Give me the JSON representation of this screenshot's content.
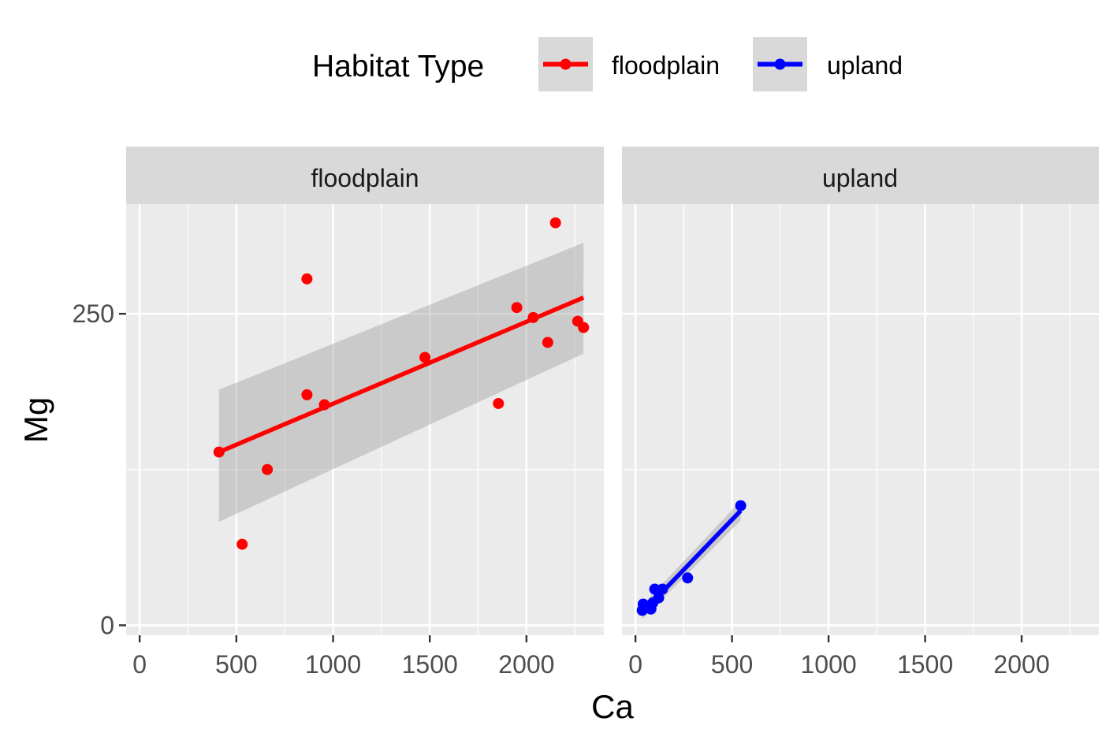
{
  "chart_data": {
    "type": "scatter",
    "x_label": "Ca",
    "y_label": "Mg",
    "legend": {
      "title": "Habitat Type",
      "position": "top",
      "entries": [
        {
          "label": "floodplain",
          "color": "#ff0000"
        },
        {
          "label": "upland",
          "color": "#0000ff"
        }
      ]
    },
    "x_range": [
      -70,
      2400
    ],
    "y_range": [
      -8,
      338
    ],
    "x_ticks": [
      0,
      500,
      1000,
      1500,
      2000
    ],
    "x_tick_labels": [
      "0",
      "500",
      "1000",
      "1500",
      "2000"
    ],
    "y_ticks": [
      0,
      250
    ],
    "y_tick_labels": [
      "0",
      "250"
    ],
    "grid": true,
    "panels": [
      {
        "strip_label": "floodplain",
        "color": "#ff0000",
        "points": [
          {
            "x": 410,
            "y": 139
          },
          {
            "x": 530,
            "y": 65
          },
          {
            "x": 660,
            "y": 125
          },
          {
            "x": 865,
            "y": 278
          },
          {
            "x": 865,
            "y": 185
          },
          {
            "x": 955,
            "y": 177
          },
          {
            "x": 1475,
            "y": 215
          },
          {
            "x": 1855,
            "y": 178
          },
          {
            "x": 1950,
            "y": 255
          },
          {
            "x": 2035,
            "y": 247
          },
          {
            "x": 2110,
            "y": 227
          },
          {
            "x": 2150,
            "y": 323
          },
          {
            "x": 2265,
            "y": 244
          },
          {
            "x": 2295,
            "y": 239
          }
        ],
        "fit_line": [
          {
            "x": 410,
            "y": 139
          },
          {
            "x": 2295,
            "y": 263
          }
        ],
        "confidence_band": {
          "x": [
            410,
            2295
          ],
          "upper": [
            189,
            307
          ],
          "lower": [
            83,
            218
          ]
        }
      },
      {
        "strip_label": "upland",
        "color": "#0000ff",
        "points": [
          {
            "x": 35,
            "y": 12
          },
          {
            "x": 40,
            "y": 17
          },
          {
            "x": 80,
            "y": 13
          },
          {
            "x": 90,
            "y": 18
          },
          {
            "x": 100,
            "y": 29
          },
          {
            "x": 120,
            "y": 22
          },
          {
            "x": 140,
            "y": 29
          },
          {
            "x": 270,
            "y": 38
          },
          {
            "x": 545,
            "y": 96
          }
        ],
        "fit_line": [
          {
            "x": 35,
            "y": 10
          },
          {
            "x": 545,
            "y": 92
          }
        ],
        "confidence_band": {
          "x": [
            35,
            545
          ],
          "upper": [
            16,
            100
          ],
          "lower": [
            5,
            84
          ]
        }
      }
    ]
  }
}
